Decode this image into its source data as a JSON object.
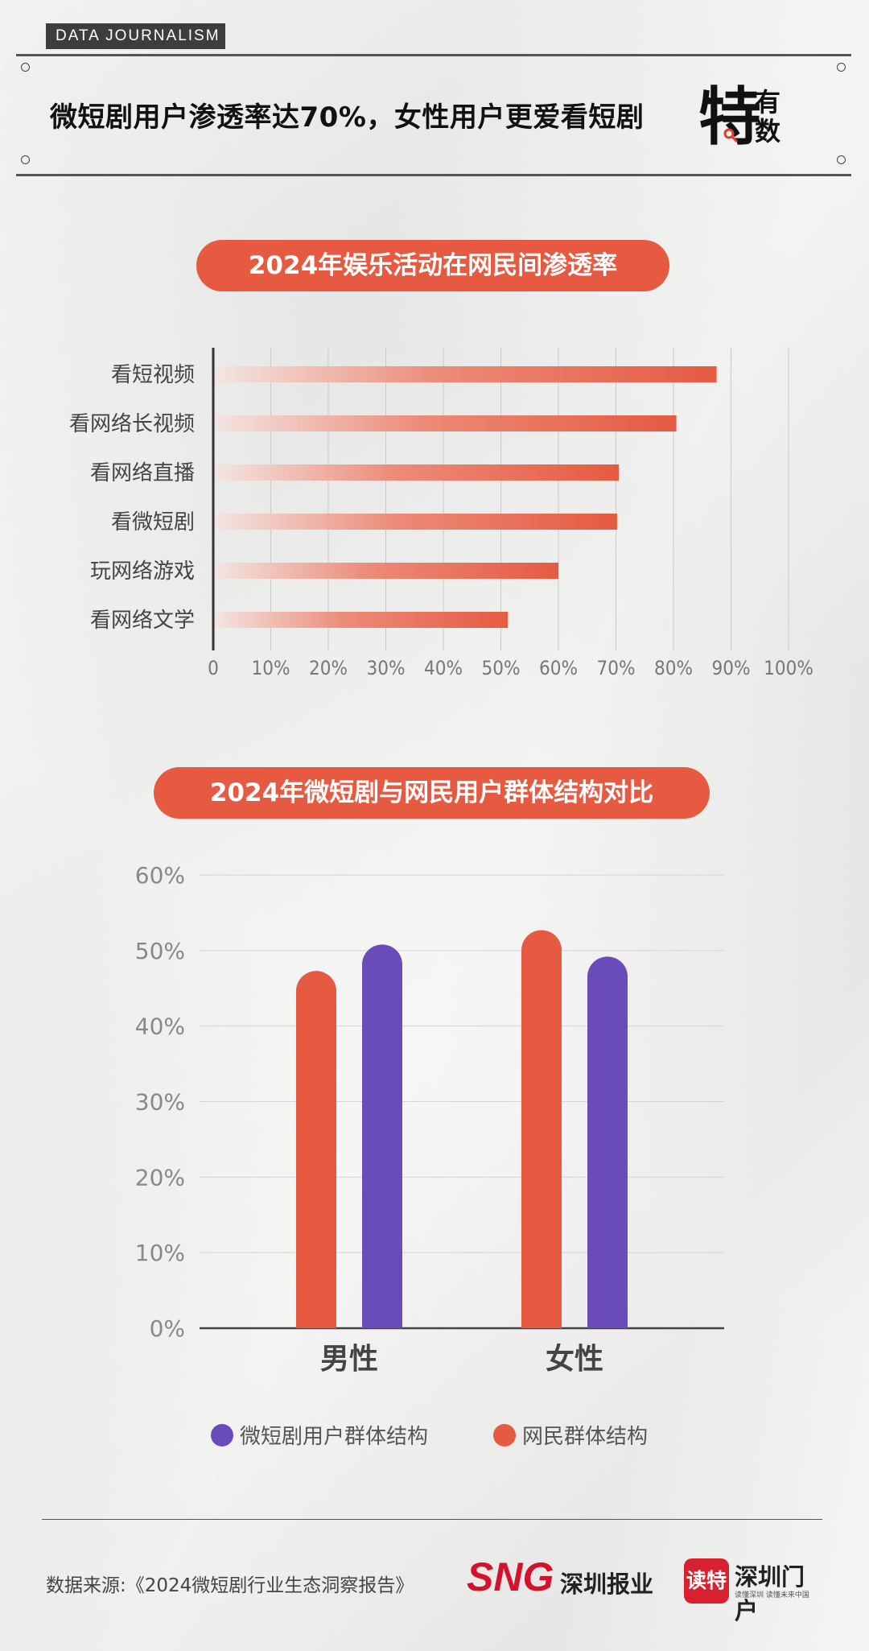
{
  "header": {
    "tag": "DATA  JOURNALISM",
    "headline": "微短剧用户渗透率达70%，女性用户更爱看短剧",
    "logo": {
      "big": "特",
      "small_top": "有",
      "small_bottom": "数"
    }
  },
  "section1": {
    "title": "2024年娱乐活动在网民间渗透率"
  },
  "section2": {
    "title": "2024年微短剧与网民用户群体结构对比"
  },
  "colors": {
    "accent": "#e65a42",
    "purple": "#6a4bba",
    "bar_fade": "#f3e3e0"
  },
  "chart_data": [
    {
      "type": "bar",
      "orientation": "horizontal",
      "categories": [
        "看短视频",
        "看网络长视频",
        "看网络直播",
        "看微短剧",
        "玩网络游戏",
        "看网络文学"
      ],
      "values": [
        87.5,
        80.5,
        70.5,
        70.2,
        60,
        51.2
      ],
      "unit": "%",
      "xlim": [
        0,
        100
      ],
      "xticks": [
        "0",
        "10%",
        "20%",
        "30%",
        "40%",
        "50%",
        "60%",
        "70%",
        "80%",
        "90%",
        "100%"
      ],
      "grid": true
    },
    {
      "type": "bar",
      "categories": [
        "男性",
        "女性"
      ],
      "series": [
        {
          "name": "网民群体结构",
          "values": [
            47.3,
            52.7
          ],
          "color": "#e65a42"
        },
        {
          "name": "微短剧用户群体结构",
          "values": [
            50.8,
            49.2
          ],
          "color": "#6a4bba"
        }
      ],
      "ylim": [
        0,
        60
      ],
      "yticks": [
        "0%",
        "10%",
        "20%",
        "30%",
        "40%",
        "50%",
        "60%"
      ],
      "grid": true,
      "legend_position": "bottom",
      "legend_order": [
        "微短剧用户群体结构",
        "网民群体结构"
      ]
    }
  ],
  "footer": {
    "source": "数据来源:《2024微短剧行业生态洞察报告》",
    "brand1_mark": "SNG",
    "brand1_text": "深圳报业",
    "brand2_badge": "读特",
    "brand2_text": "深圳门户",
    "brand2_sub": "读懂深圳  读懂未来中国"
  }
}
